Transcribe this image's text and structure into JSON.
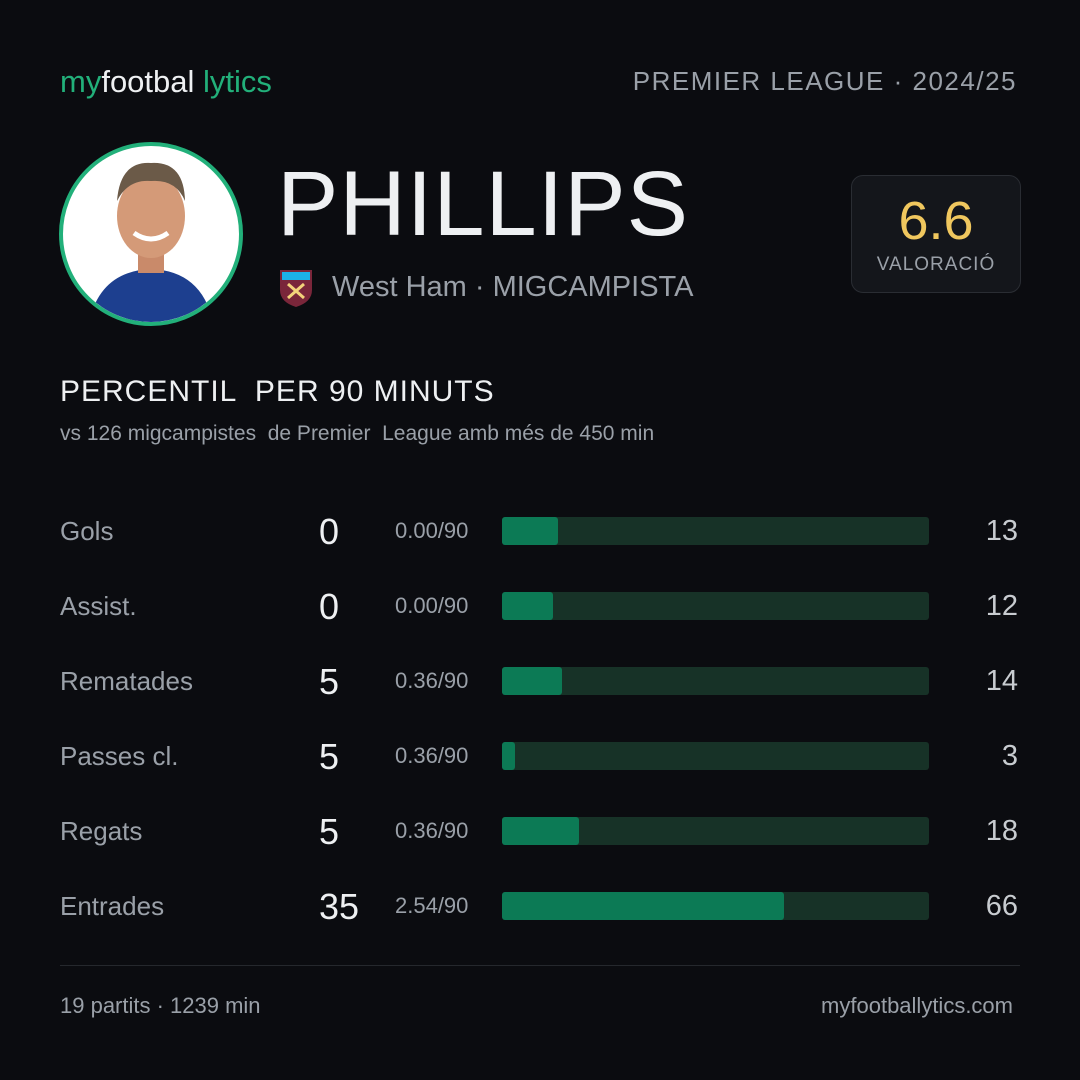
{
  "brand": {
    "parts": [
      "my",
      "footbal",
      "lytics"
    ]
  },
  "competition": "PREMIER LEAGUE · 2024/25",
  "player": {
    "name": "PHILLIPS",
    "team_position": "West Ham · MIGCAMPISTA",
    "rating": "6.6",
    "rating_label": "VALORACIÓ"
  },
  "section": {
    "title": "PERCENTIL  PER 90 MINUTS",
    "subtitle": "vs 126 migcampistes  de Premier  League amb més de 450 min"
  },
  "stats": {
    "percentile_range": [
      0,
      100
    ],
    "rows": [
      {
        "label": "Gols",
        "total": 0,
        "per90": "0.00/90",
        "percentile": 13
      },
      {
        "label": "Assist.",
        "total": 0,
        "per90": "0.00/90",
        "percentile": 12
      },
      {
        "label": "Rematades",
        "total": 5,
        "per90": "0.36/90",
        "percentile": 14
      },
      {
        "label": "Passes cl.",
        "total": 5,
        "per90": "0.36/90",
        "percentile": 3
      },
      {
        "label": "Regats",
        "total": 5,
        "per90": "0.36/90",
        "percentile": 18
      },
      {
        "label": "Entrades",
        "total": 35,
        "per90": "2.54/90",
        "percentile": 66
      }
    ]
  },
  "footer": {
    "left": "19 partits · 1239 min",
    "right": "myfootballytics.com"
  }
}
